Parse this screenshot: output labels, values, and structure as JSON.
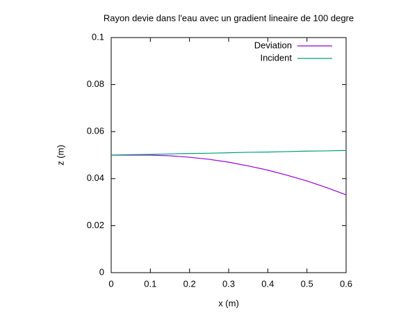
{
  "chart_data": {
    "type": "line",
    "title": "Rayon devie dans l'eau avec un gradient lineaire de 100 degre",
    "x_label": "x (m)",
    "y_label": "z (m)",
    "x": [
      0,
      0.05,
      0.1,
      0.15,
      0.2,
      0.25,
      0.3,
      0.35,
      0.4,
      0.45,
      0.5,
      0.55,
      0.6
    ],
    "series": [
      {
        "name": "Deviation",
        "color": "#9400d3",
        "values": [
          0.05,
          0.05,
          0.04998,
          0.0497,
          0.0491,
          0.0482,
          0.047,
          0.0454,
          0.0436,
          0.0414,
          0.039,
          0.0362,
          0.0331
        ]
      },
      {
        "name": "Incident",
        "color": "#009e73",
        "values": [
          0.05,
          0.0502,
          0.0503,
          0.0505,
          0.0507,
          0.0508,
          0.051,
          0.0512,
          0.0513,
          0.0515,
          0.0517,
          0.0518,
          0.052
        ]
      }
    ],
    "xlim": [
      0,
      0.6
    ],
    "ylim": [
      0,
      0.1
    ],
    "xticks": [
      0,
      0.1,
      0.2,
      0.3,
      0.4,
      0.5,
      0.6
    ],
    "yticks": [
      0,
      0.02,
      0.04,
      0.06,
      0.08,
      0.1
    ],
    "legend": "top-right",
    "grid": false
  }
}
